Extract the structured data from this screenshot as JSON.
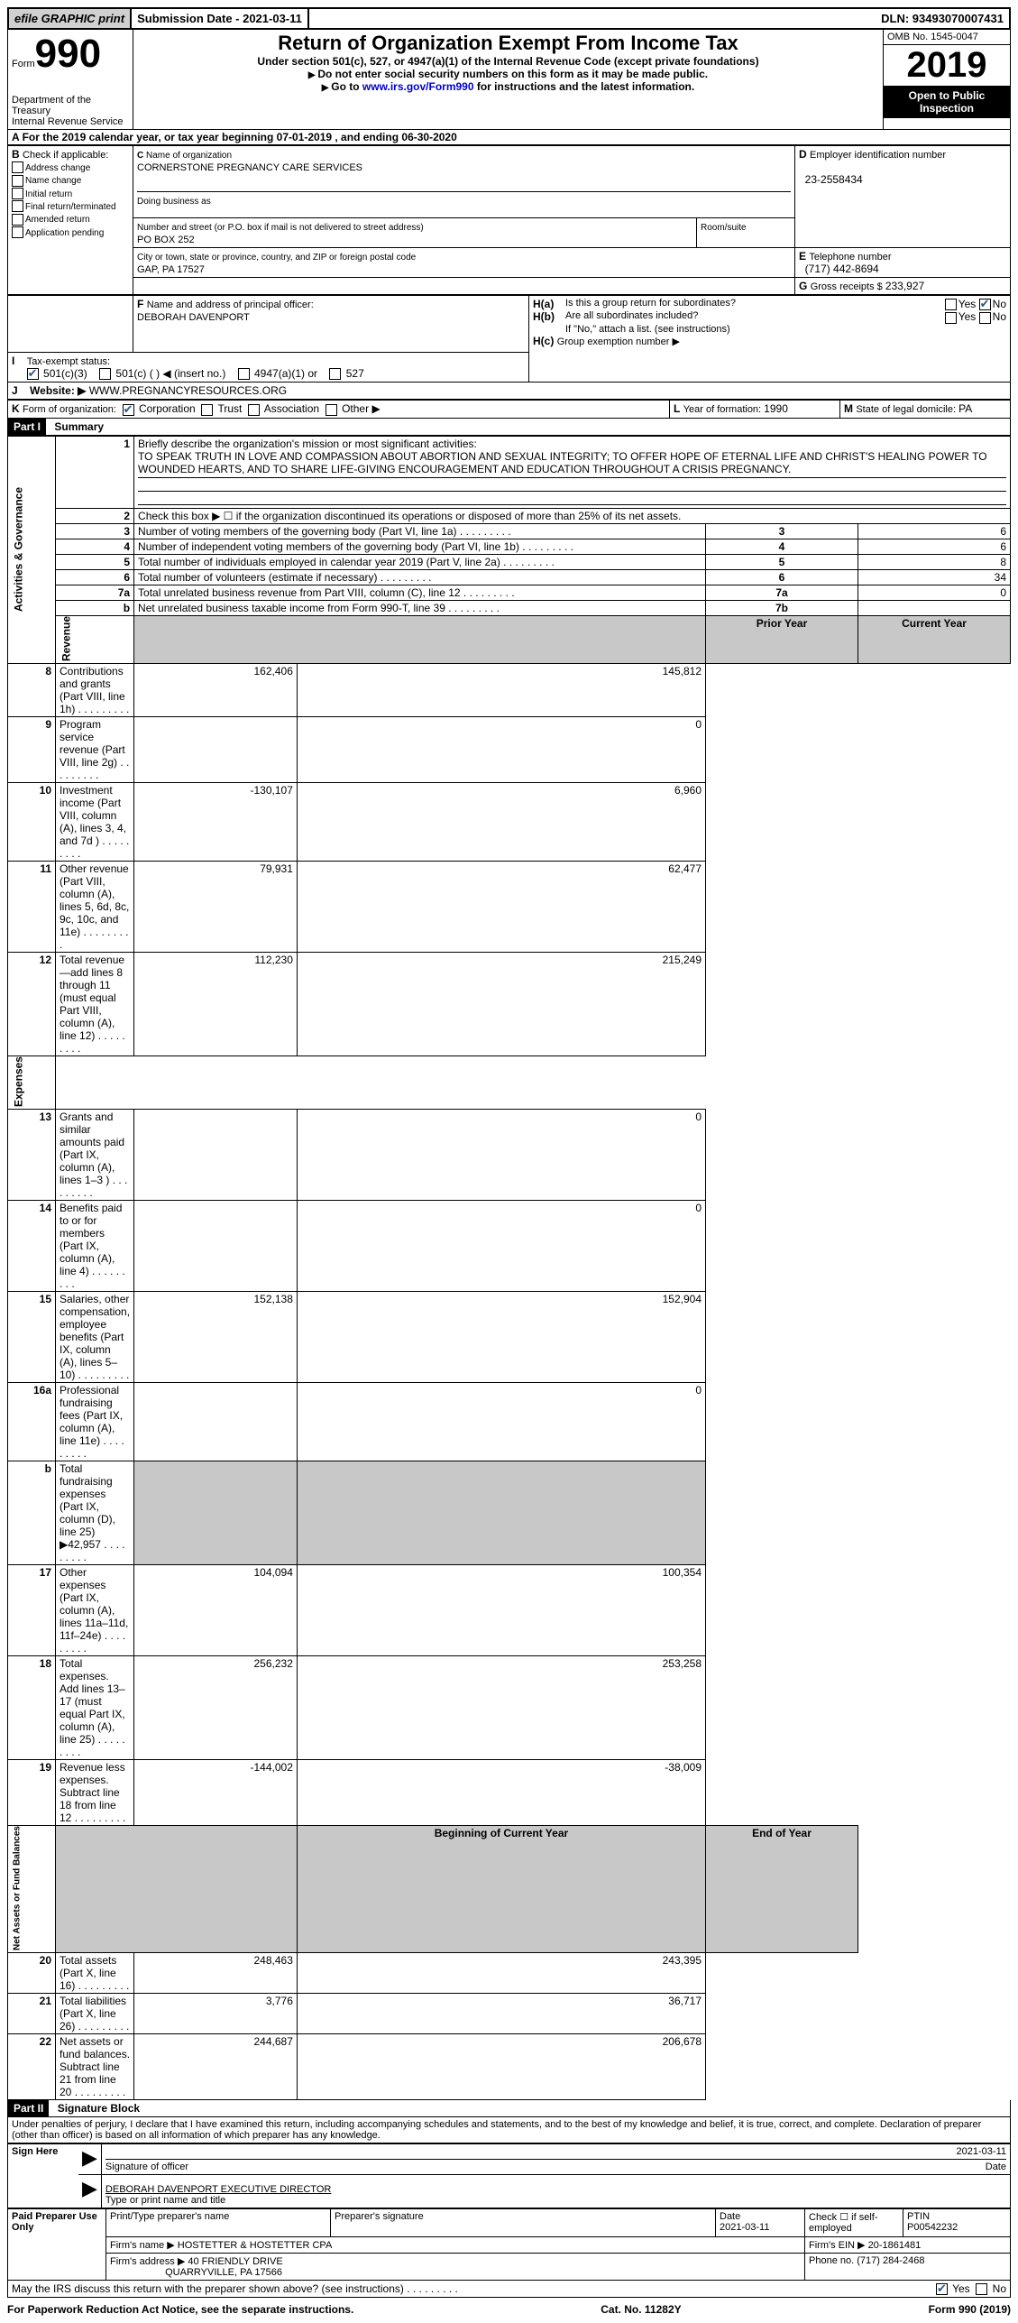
{
  "topbar": {
    "efile": "efile GRAPHIC print",
    "submission": "Submission Date - 2021-03-11",
    "dln": "DLN: 93493070007431"
  },
  "head": {
    "form_word": "Form",
    "form_no": "990",
    "dept1": "Department of the Treasury",
    "dept2": "Internal Revenue Service",
    "title": "Return of Organization Exempt From Income Tax",
    "subtitle": "Under section 501(c), 527, or 4947(a)(1) of the Internal Revenue Code (except private foundations)",
    "note1": "Do not enter social security numbers on this form as it may be made public.",
    "note2_a": "Go to ",
    "note2_link": "www.irs.gov/Form990",
    "note2_b": " for instructions and the latest information.",
    "omb": "OMB No. 1545-0047",
    "year": "2019",
    "inspect": "Open to Public Inspection"
  },
  "A": {
    "text": "For the 2019 calendar year, or tax year beginning 07-01-2019    , and ending 06-30-2020"
  },
  "B": {
    "label": "Check if applicable:",
    "opts": [
      "Address change",
      "Name change",
      "Initial return",
      "Final return/terminated",
      "Amended return",
      "Application pending"
    ]
  },
  "C": {
    "name_label": "Name of organization",
    "name": "CORNERSTONE PREGNANCY CARE SERVICES",
    "dba_label": "Doing business as",
    "street_label": "Number and street (or P.O. box if mail is not delivered to street address)",
    "room_label": "Room/suite",
    "street": "PO BOX 252",
    "city_label": "City or town, state or province, country, and ZIP or foreign postal code",
    "city": "GAP, PA  17527"
  },
  "D": {
    "label": "Employer identification number",
    "val": "23-2558434"
  },
  "E": {
    "label": "Telephone number",
    "val": "(717) 442-8694"
  },
  "G": {
    "label": "Gross receipts $ ",
    "val": "233,927"
  },
  "F": {
    "label": "Name and address of principal officer:",
    "val": "DEBORAH DAVENPORT"
  },
  "H": {
    "a": "Is this a group return for subordinates?",
    "b": "Are all subordinates included?",
    "note": "If \"No,\" attach a list. (see instructions)",
    "c": "Group exemption number ▶",
    "yes": "Yes",
    "no": "No"
  },
  "I": {
    "label": "Tax-exempt status:",
    "o1": "501(c)(3)",
    "o2": "501(c) (   ) ◀ (insert no.)",
    "o3": "4947(a)(1) or",
    "o4": "527"
  },
  "J": {
    "label": "Website: ▶",
    "val": "WWW.PREGNANCYRESOURCES.ORG"
  },
  "K": {
    "label": "Form of organization:",
    "o1": "Corporation",
    "o2": "Trust",
    "o3": "Association",
    "o4": "Other ▶"
  },
  "L": {
    "label": "Year of formation: ",
    "val": "1990"
  },
  "M": {
    "label": "State of legal domicile: ",
    "val": "PA"
  },
  "part1": {
    "header": "Part I",
    "title": "Summary",
    "q1_label": "Briefly describe the organization's mission or most significant activities:",
    "q1": "TO SPEAK TRUTH IN LOVE AND COMPASSION ABOUT ABORTION AND SEXUAL INTEGRITY; TO OFFER HOPE OF ETERNAL LIFE AND CHRIST'S HEALING POWER TO WOUNDED HEARTS, AND TO SHARE LIFE-GIVING ENCOURAGEMENT AND EDUCATION THROUGHOUT A CRISIS PREGNANCY.",
    "q2": "Check this box ▶ ☐  if the organization discontinued its operations or disposed of more than 25% of its net assets.",
    "gov_label": "Activities & Governance",
    "rev_label": "Revenue",
    "exp_label": "Expenses",
    "net_label": "Net Assets or Fund Balances",
    "col_prior": "Prior Year",
    "col_curr": "Current Year",
    "col_beg": "Beginning of Current Year",
    "col_end": "End of Year",
    "rows_gov": [
      {
        "n": "3",
        "t": "Number of voting members of the governing body (Part VI, line 1a)",
        "box": "3",
        "v": "6"
      },
      {
        "n": "4",
        "t": "Number of independent voting members of the governing body (Part VI, line 1b)",
        "box": "4",
        "v": "6"
      },
      {
        "n": "5",
        "t": "Total number of individuals employed in calendar year 2019 (Part V, line 2a)",
        "box": "5",
        "v": "8"
      },
      {
        "n": "6",
        "t": "Total number of volunteers (estimate if necessary)",
        "box": "6",
        "v": "34"
      },
      {
        "n": "7a",
        "t": "Total unrelated business revenue from Part VIII, column (C), line 12",
        "box": "7a",
        "v": "0"
      },
      {
        "n": "b",
        "t": "Net unrelated business taxable income from Form 990-T, line 39",
        "box": "7b",
        "v": ""
      }
    ],
    "rows_rev": [
      {
        "n": "8",
        "t": "Contributions and grants (Part VIII, line 1h)",
        "p": "162,406",
        "c": "145,812"
      },
      {
        "n": "9",
        "t": "Program service revenue (Part VIII, line 2g)",
        "p": "",
        "c": "0"
      },
      {
        "n": "10",
        "t": "Investment income (Part VIII, column (A), lines 3, 4, and 7d )",
        "p": "-130,107",
        "c": "6,960"
      },
      {
        "n": "11",
        "t": "Other revenue (Part VIII, column (A), lines 5, 6d, 8c, 9c, 10c, and 11e)",
        "p": "79,931",
        "c": "62,477"
      },
      {
        "n": "12",
        "t": "Total revenue—add lines 8 through 11 (must equal Part VIII, column (A), line 12)",
        "p": "112,230",
        "c": "215,249"
      }
    ],
    "rows_exp": [
      {
        "n": "13",
        "t": "Grants and similar amounts paid (Part IX, column (A), lines 1–3 )",
        "p": "",
        "c": "0"
      },
      {
        "n": "14",
        "t": "Benefits paid to or for members (Part IX, column (A), line 4)",
        "p": "",
        "c": "0"
      },
      {
        "n": "15",
        "t": "Salaries, other compensation, employee benefits (Part IX, column (A), lines 5–10)",
        "p": "152,138",
        "c": "152,904"
      },
      {
        "n": "16a",
        "t": "Professional fundraising fees (Part IX, column (A), line 11e)",
        "p": "",
        "c": "0"
      },
      {
        "n": "b",
        "t": "Total fundraising expenses (Part IX, column (D), line 25) ▶42,957",
        "p": "shade",
        "c": "shade"
      },
      {
        "n": "17",
        "t": "Other expenses (Part IX, column (A), lines 11a–11d, 11f–24e)",
        "p": "104,094",
        "c": "100,354"
      },
      {
        "n": "18",
        "t": "Total expenses. Add lines 13–17 (must equal Part IX, column (A), line 25)",
        "p": "256,232",
        "c": "253,258"
      },
      {
        "n": "19",
        "t": "Revenue less expenses. Subtract line 18 from line 12",
        "p": "-144,002",
        "c": "-38,009"
      }
    ],
    "rows_net": [
      {
        "n": "20",
        "t": "Total assets (Part X, line 16)",
        "p": "248,463",
        "c": "243,395"
      },
      {
        "n": "21",
        "t": "Total liabilities (Part X, line 26)",
        "p": "3,776",
        "c": "36,717"
      },
      {
        "n": "22",
        "t": "Net assets or fund balances. Subtract line 21 from line 20",
        "p": "244,687",
        "c": "206,678"
      }
    ]
  },
  "part2": {
    "header": "Part II",
    "title": "Signature Block",
    "decl": "Under penalties of perjury, I declare that I have examined this return, including accompanying schedules and statements, and to the best of my knowledge and belief, it is true, correct, and complete. Declaration of preparer (other than officer) is based on all information of which preparer has any knowledge.",
    "sign_here": "Sign Here",
    "sig_officer": "Signature of officer",
    "date": "Date",
    "sig_date": "2021-03-11",
    "name_title": "DEBORAH DAVENPORT  EXECUTIVE DIRECTOR",
    "name_title_label": "Type or print name and title",
    "paid": "Paid Preparer Use Only",
    "prep_name_label": "Print/Type preparer's name",
    "prep_sig_label": "Preparer's signature",
    "prep_date_label": "Date",
    "prep_date": "2021-03-11",
    "check_se": "Check ☐ if self-employed",
    "ptin_label": "PTIN",
    "ptin": "P00542232",
    "firm_name_label": "Firm's name    ▶",
    "firm_name": "HOSTETTER & HOSTETTER CPA",
    "firm_ein_label": "Firm's EIN ▶",
    "firm_ein": "20-1861481",
    "firm_addr_label": "Firm's address ▶",
    "firm_addr1": "40 FRIENDLY DRIVE",
    "firm_addr2": "QUARRYVILLE, PA  17566",
    "phone_label": "Phone no. ",
    "phone": "(717) 284-2468",
    "discuss": "May the IRS discuss this return with the preparer shown above? (see instructions)"
  },
  "footer": {
    "left": "For Paperwork Reduction Act Notice, see the separate instructions.",
    "mid": "Cat. No. 11282Y",
    "right": "Form 990 (2019)"
  }
}
